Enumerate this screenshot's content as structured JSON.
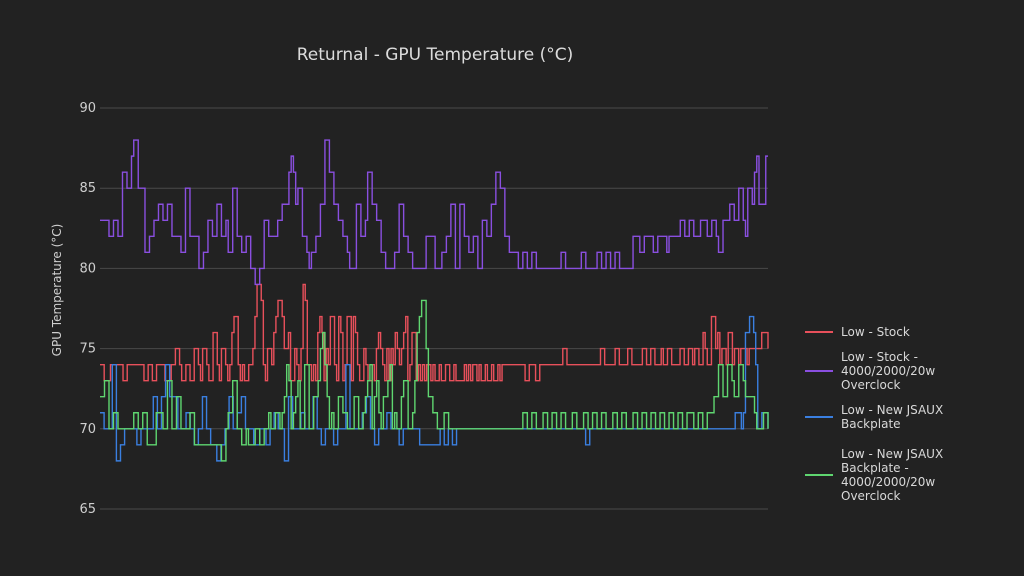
{
  "chart_data": {
    "type": "line",
    "title": "Returnal - GPU Temperature (°C)",
    "xlabel": "",
    "ylabel": "GPU Temperature (°C)",
    "ylim": [
      65,
      90
    ],
    "yticks": [
      65,
      70,
      75,
      80,
      85,
      90
    ],
    "xlim": [
      0,
      270
    ],
    "grid": true,
    "legend_position": "right",
    "series": [
      {
        "name": "Low - Stock",
        "legend_lines": [
          "Low - Stock"
        ],
        "color": "#e8505b",
        "values": [
          74,
          74,
          73,
          73,
          73,
          74,
          74,
          74,
          74,
          74,
          74,
          73,
          73,
          74,
          74,
          74,
          74,
          74,
          74,
          74,
          74,
          73,
          73,
          74,
          74,
          73,
          73,
          74,
          74,
          74,
          74,
          73,
          73,
          73,
          74,
          74,
          75,
          75,
          74,
          73,
          73,
          74,
          74,
          73,
          73,
          75,
          75,
          74,
          73,
          75,
          75,
          74,
          73,
          73,
          76,
          76,
          74,
          73,
          75,
          75,
          74,
          73,
          74,
          76,
          77,
          77,
          74,
          73,
          74,
          73,
          73,
          74,
          74,
          75,
          77,
          79,
          79,
          78,
          74,
          73,
          75,
          75,
          74,
          76,
          77,
          78,
          78,
          77,
          75,
          75,
          76,
          73,
          73,
          75,
          74,
          73,
          75,
          79,
          78,
          74,
          74,
          73,
          74,
          73,
          76,
          77,
          76,
          73,
          75,
          74,
          77,
          77,
          74,
          73,
          77,
          76,
          73,
          74,
          77,
          77,
          73,
          77,
          76,
          74,
          73,
          73,
          75,
          74,
          73,
          73,
          74,
          73,
          75,
          76,
          75,
          74,
          73,
          75,
          73,
          75,
          74,
          76,
          75,
          74,
          75,
          76,
          77,
          73,
          74,
          76,
          76,
          73,
          74,
          73,
          74,
          73,
          74,
          74,
          73,
          74,
          73,
          73,
          74,
          73,
          73,
          74,
          74,
          73,
          73,
          74,
          73,
          73,
          73,
          73,
          74,
          73,
          74,
          73,
          74,
          74,
          73,
          74,
          73,
          73,
          74,
          73,
          73,
          74,
          73,
          73,
          74,
          73,
          74,
          74,
          74,
          74,
          74,
          74,
          74,
          74,
          74,
          74,
          74,
          73,
          73,
          74,
          74,
          74,
          73,
          73,
          74,
          74,
          74,
          74,
          74,
          74,
          74,
          74,
          74,
          74,
          74,
          75,
          75,
          74,
          74,
          74,
          74,
          74,
          74,
          74,
          74,
          74,
          74,
          74,
          74,
          74,
          74,
          74,
          74,
          75,
          75,
          74,
          74,
          74,
          74,
          74,
          75,
          75,
          74,
          74,
          74,
          74,
          75,
          75,
          74,
          74,
          74,
          74,
          74,
          75,
          75,
          74,
          74,
          75,
          75,
          74,
          74,
          74,
          75,
          74,
          74,
          75,
          75,
          74,
          74,
          74,
          74,
          75,
          75,
          74,
          74,
          75,
          75,
          74,
          75,
          75,
          74,
          74,
          76,
          75,
          74,
          74,
          77,
          77,
          75,
          76,
          74,
          75,
          75,
          74,
          76,
          76,
          74,
          75,
          75,
          74,
          75,
          75,
          75,
          74,
          75,
          75,
          75,
          75,
          75,
          75,
          76,
          76,
          76,
          75
        ]
      },
      {
        "name": "Low - Stock - 4000/2000/20w Overclock",
        "legend_lines": [
          "Low - Stock -",
          "4000/2000/20w",
          "Overclock"
        ],
        "color": "#8a4fe0",
        "values": [
          83,
          83,
          83,
          83,
          82,
          82,
          83,
          83,
          82,
          82,
          86,
          86,
          85,
          85,
          87,
          88,
          88,
          85,
          85,
          85,
          81,
          81,
          82,
          82,
          83,
          83,
          84,
          84,
          83,
          83,
          84,
          84,
          82,
          82,
          82,
          82,
          81,
          81,
          85,
          85,
          82,
          82,
          82,
          82,
          80,
          80,
          81,
          81,
          83,
          83,
          82,
          82,
          84,
          84,
          82,
          82,
          83,
          81,
          81,
          85,
          85,
          82,
          82,
          81,
          81,
          82,
          82,
          80,
          80,
          79,
          79,
          80,
          80,
          83,
          83,
          82,
          82,
          82,
          82,
          83,
          83,
          84,
          84,
          84,
          86,
          87,
          86,
          84,
          85,
          85,
          82,
          82,
          81,
          80,
          81,
          81,
          82,
          82,
          84,
          84,
          88,
          88,
          86,
          86,
          84,
          84,
          83,
          83,
          82,
          82,
          81,
          80,
          80,
          80,
          84,
          84,
          82,
          82,
          83,
          86,
          86,
          84,
          84,
          83,
          83,
          81,
          81,
          80,
          80,
          80,
          80,
          81,
          81,
          84,
          84,
          82,
          82,
          81,
          81,
          80,
          80,
          80,
          80,
          80,
          80,
          82,
          82,
          82,
          82,
          80,
          80,
          80,
          81,
          81,
          82,
          82,
          84,
          84,
          80,
          80,
          84,
          84,
          82,
          82,
          81,
          81,
          82,
          82,
          80,
          80,
          83,
          83,
          82,
          82,
          84,
          84,
          86,
          86,
          85,
          85,
          82,
          82,
          81,
          81,
          81,
          81,
          80,
          80,
          81,
          81,
          80,
          80,
          81,
          81,
          80,
          80,
          80,
          80,
          80,
          80,
          80,
          80,
          80,
          80,
          80,
          81,
          81,
          80,
          80,
          80,
          80,
          80,
          80,
          80,
          81,
          81,
          80,
          80,
          80,
          80,
          80,
          81,
          81,
          80,
          80,
          81,
          81,
          80,
          80,
          81,
          81,
          80,
          80,
          80,
          80,
          80,
          80,
          82,
          82,
          82,
          81,
          81,
          82,
          82,
          82,
          82,
          81,
          81,
          82,
          82,
          82,
          82,
          81,
          82,
          82,
          82,
          82,
          82,
          83,
          83,
          82,
          82,
          83,
          83,
          82,
          82,
          82,
          83,
          83,
          83,
          82,
          82,
          83,
          83,
          82,
          81,
          81,
          83,
          83,
          83,
          84,
          84,
          83,
          83,
          85,
          85,
          83,
          82,
          85,
          85,
          84,
          86,
          87,
          84,
          84,
          84,
          87,
          87
        ]
      },
      {
        "name": "Low - New JSAUX Backplate",
        "legend_lines": [
          "Low - New JSAUX",
          "Backplate"
        ],
        "color": "#3a7fe0",
        "values": [
          71,
          71,
          70,
          70,
          70,
          70,
          74,
          74,
          68,
          68,
          69,
          69,
          70,
          70,
          70,
          70,
          70,
          70,
          69,
          69,
          70,
          70,
          70,
          70,
          70,
          70,
          72,
          72,
          70,
          70,
          72,
          72,
          74,
          74,
          72,
          72,
          72,
          72,
          70,
          70,
          70,
          70,
          71,
          71,
          70,
          70,
          69,
          69,
          70,
          70,
          72,
          72,
          70,
          70,
          69,
          69,
          69,
          68,
          68,
          69,
          69,
          70,
          70,
          72,
          72,
          70,
          70,
          71,
          71,
          72,
          72,
          70,
          70,
          70,
          70,
          69,
          69,
          69,
          70,
          70,
          70,
          69,
          69,
          70,
          70,
          71,
          71,
          70,
          70,
          70,
          68,
          68,
          72,
          72,
          70,
          70,
          70,
          70,
          71,
          71,
          70,
          70,
          70,
          70,
          72,
          72,
          70,
          70,
          69,
          69,
          70,
          70,
          70,
          70,
          69,
          69,
          70,
          70,
          70,
          70,
          74,
          74,
          70,
          70,
          70,
          70,
          70,
          70,
          71,
          71,
          72,
          72,
          70,
          70,
          69,
          69,
          70,
          70,
          70,
          70,
          71,
          71,
          70,
          70,
          70,
          70,
          69,
          69,
          70,
          70,
          70,
          70,
          70,
          70,
          70,
          70,
          69,
          69,
          69,
          69,
          69,
          69,
          69,
          69,
          69,
          69,
          70,
          70,
          69,
          69,
          70,
          70,
          69,
          69,
          70,
          70,
          70,
          70,
          70,
          70,
          70,
          70,
          70,
          70,
          70,
          70,
          70,
          70,
          70,
          70,
          70,
          70,
          70,
          70,
          70,
          70,
          70,
          70,
          70,
          70,
          70,
          70,
          70,
          70,
          70,
          70,
          70,
          70,
          70,
          70,
          70,
          70,
          70,
          70,
          70,
          70,
          70,
          70,
          70,
          70,
          70,
          70,
          70,
          70,
          70,
          70,
          70,
          70,
          70,
          70,
          70,
          70,
          70,
          70,
          70,
          70,
          70,
          69,
          69,
          70,
          70,
          70,
          70,
          70,
          70,
          70,
          70,
          70,
          70,
          70,
          70,
          70,
          70,
          70,
          70,
          70,
          70,
          70,
          70,
          70,
          70,
          70,
          70,
          70,
          70,
          70,
          70,
          70,
          70,
          70,
          70,
          70,
          70,
          70,
          70,
          70,
          70,
          70,
          70,
          70,
          70,
          70,
          70,
          70,
          70,
          70,
          70,
          70,
          70,
          70,
          70,
          70,
          70,
          70,
          70,
          70,
          70,
          70,
          70,
          70,
          70,
          70,
          70,
          70,
          70,
          70,
          70,
          70,
          70,
          70,
          71,
          71,
          71,
          70,
          71,
          76,
          76,
          77,
          77,
          76,
          74,
          70,
          70,
          71,
          71,
          71,
          70
        ]
      },
      {
        "name": "Low - New JSAUX Backplate - 4000/2000/20w Overclock",
        "legend_lines": [
          "Low - New JSAUX",
          "Backplate -",
          "4000/2000/20w",
          "Overclock"
        ],
        "color": "#5fd670",
        "values": [
          72,
          72,
          73,
          73,
          70,
          70,
          71,
          71,
          70,
          70,
          70,
          70,
          70,
          70,
          70,
          71,
          71,
          70,
          70,
          71,
          71,
          69,
          69,
          69,
          69,
          71,
          71,
          71,
          70,
          70,
          73,
          73,
          70,
          70,
          72,
          72,
          70,
          70,
          70,
          70,
          71,
          71,
          69,
          69,
          69,
          69,
          69,
          69,
          69,
          69,
          69,
          69,
          69,
          69,
          68,
          68,
          70,
          71,
          71,
          73,
          73,
          70,
          70,
          69,
          69,
          70,
          69,
          69,
          69,
          70,
          70,
          69,
          69,
          70,
          70,
          71,
          70,
          70,
          71,
          71,
          70,
          71,
          72,
          74,
          73,
          70,
          71,
          72,
          73,
          70,
          70,
          74,
          74,
          70,
          70,
          72,
          72,
          73,
          75,
          76,
          74,
          72,
          70,
          71,
          70,
          70,
          72,
          72,
          71,
          71,
          70,
          70,
          70,
          72,
          72,
          70,
          70,
          71,
          72,
          73,
          74,
          70,
          72,
          73,
          71,
          70,
          72,
          72,
          73,
          74,
          70,
          71,
          70,
          70,
          72,
          73,
          73,
          70,
          70,
          71,
          73,
          76,
          77,
          78,
          78,
          75,
          72,
          72,
          71,
          71,
          70,
          70,
          70,
          71,
          71,
          70,
          70,
          70,
          70,
          70,
          70,
          70,
          70,
          70,
          70,
          70,
          70,
          70,
          70,
          70,
          70,
          70,
          70,
          70,
          70,
          70,
          70,
          70,
          70,
          70,
          70,
          70,
          70,
          70,
          70,
          70,
          70,
          70,
          71,
          71,
          70,
          70,
          71,
          71,
          70,
          70,
          70,
          71,
          71,
          70,
          70,
          71,
          71,
          70,
          70,
          71,
          71,
          70,
          70,
          70,
          71,
          71,
          70,
          70,
          70,
          71,
          71,
          70,
          70,
          71,
          71,
          70,
          70,
          71,
          71,
          70,
          70,
          70,
          71,
          71,
          70,
          70,
          71,
          71,
          70,
          70,
          70,
          71,
          71,
          70,
          70,
          71,
          71,
          70,
          70,
          71,
          71,
          70,
          70,
          71,
          71,
          70,
          70,
          71,
          71,
          70,
          70,
          71,
          71,
          70,
          70,
          71,
          71,
          71,
          70,
          70,
          71,
          71,
          70,
          70,
          71,
          71,
          71,
          72,
          72,
          74,
          74,
          72,
          72,
          74,
          74,
          73,
          72,
          72,
          74,
          74,
          73,
          72,
          72,
          72,
          72,
          71,
          70,
          70,
          70,
          71,
          71,
          70
        ]
      }
    ]
  }
}
